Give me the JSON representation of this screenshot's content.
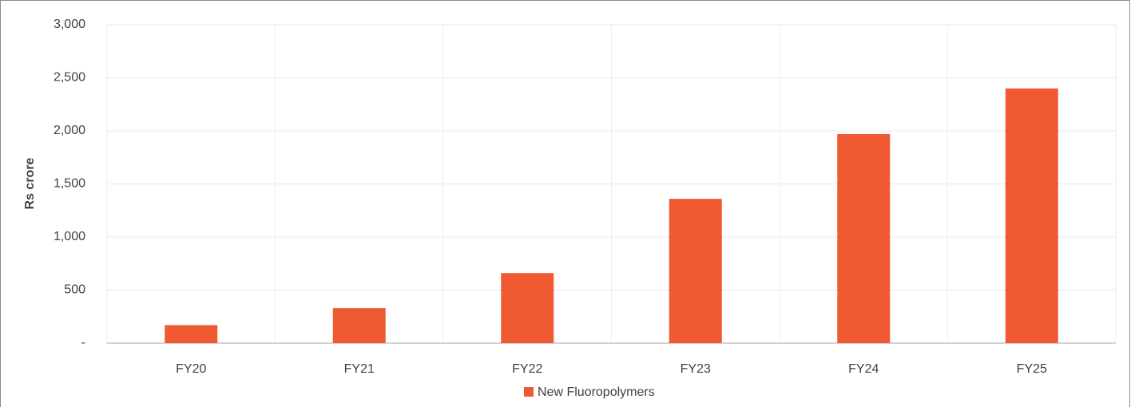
{
  "chart_data": {
    "type": "bar",
    "y_label": "Rs crore",
    "categories": [
      "FY20",
      "FY21",
      "FY22",
      "FY23",
      "FY24",
      "FY25"
    ],
    "series": [
      {
        "name": "New Fluoropolymers",
        "color": "#f05a33",
        "values": [
          170,
          330,
          660,
          1360,
          1970,
          2400
        ]
      }
    ],
    "ylim": [
      0,
      3000
    ],
    "yticks": [
      {
        "value": 0,
        "label": "-"
      },
      500,
      {
        "value": 1000,
        "label": "1,000"
      },
      {
        "value": 1500,
        "label": "1,500"
      },
      {
        "value": 2000,
        "label": "2,000"
      },
      {
        "value": 2500,
        "label": "2,500"
      },
      {
        "value": 3000,
        "label": "3,000"
      }
    ],
    "grid": true,
    "legend": "bottom"
  }
}
